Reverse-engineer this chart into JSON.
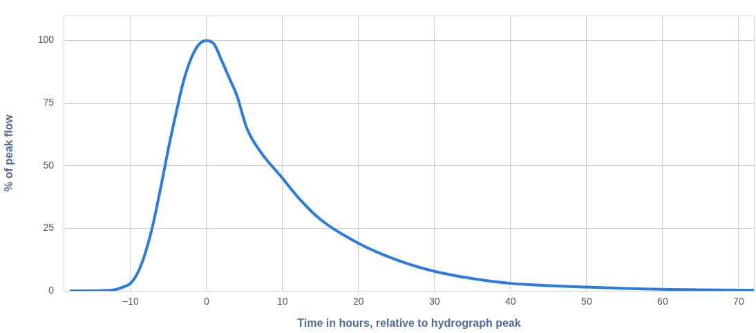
{
  "chart_data": {
    "type": "line",
    "xlabel": "Time in hours, relative to hydrograph peak",
    "ylabel": "% of peak flow",
    "x": [
      -17.8,
      -14,
      -12,
      -11,
      -10,
      -9,
      -8,
      -7,
      -6,
      -5,
      -4,
      -3,
      -2,
      -1,
      0,
      1,
      2,
      3,
      4,
      5.3,
      7,
      10,
      12,
      15,
      20,
      25,
      30,
      35,
      40,
      50,
      60,
      72
    ],
    "series": [
      {
        "color": "#2a7ae2",
        "values": [
          0,
          0.1,
          0.5,
          1.5,
          3,
          7.5,
          15.6,
          27,
          41.6,
          57,
          71,
          84,
          93,
          98.4,
          100,
          98.5,
          92,
          85,
          78,
          65,
          56,
          45,
          37.5,
          28.5,
          19,
          12.4,
          7.8,
          4.9,
          3,
          1.5,
          0.6,
          0.3
        ]
      }
    ],
    "xlim": [
      -18.8,
      72.1
    ],
    "ylim": [
      0,
      110
    ],
    "xticks": [
      -10,
      0,
      10,
      20,
      30,
      40,
      50,
      60,
      70
    ],
    "yticks": [
      0,
      25,
      50,
      75,
      100
    ],
    "grid": true,
    "legend": false,
    "marker": "none",
    "line_style": "solid"
  }
}
